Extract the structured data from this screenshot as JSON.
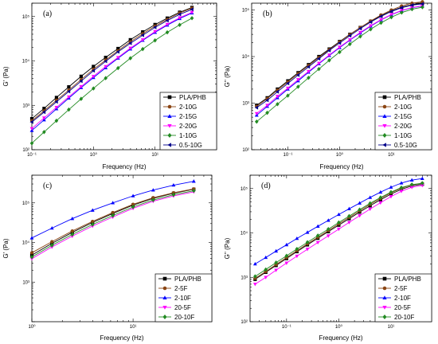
{
  "chart_data": [
    {
      "type": "line",
      "panel": "(a)",
      "xlabel": "Frequency (Hz)",
      "ylabel": "G' (Pa)",
      "xscale": "log",
      "yscale": "log",
      "xlim": [
        0.1,
        100
      ],
      "ylim": [
        100,
        200000
      ],
      "xticks": [
        "10⁻¹",
        "10⁰",
        "10¹"
      ],
      "yticks": [
        "10²",
        "10³",
        "10⁴",
        "10⁵"
      ],
      "legend": "bottom-right",
      "x": [
        0.1,
        0.158,
        0.251,
        0.398,
        0.631,
        1,
        1.58,
        2.51,
        3.98,
        6.31,
        10,
        15.8,
        25.1,
        39.8
      ],
      "series": [
        {
          "name": "PLA/PHB",
          "color": "#000000",
          "marker": "square",
          "values": [
            500,
            850,
            1500,
            2600,
            4500,
            7500,
            12000,
            19000,
            30000,
            45000,
            66000,
            92000,
            125000,
            160000
          ]
        },
        {
          "name": "2-10G",
          "color": "#8B4513",
          "marker": "circle",
          "values": [
            450,
            750,
            1300,
            2200,
            3800,
            6500,
            10500,
            17000,
            27000,
            41000,
            61000,
            86000,
            120000,
            155000
          ]
        },
        {
          "name": "2-15G",
          "color": "#0000FF",
          "marker": "triangle-up",
          "values": [
            270,
            470,
            830,
            1450,
            2500,
            4200,
            7000,
            11500,
            18500,
            29000,
            44000,
            64000,
            90000,
            120000
          ]
        },
        {
          "name": "2-20G",
          "color": "#FF00FF",
          "marker": "triangle-down",
          "values": [
            300,
            520,
            900,
            1550,
            2650,
            4500,
            7500,
            12000,
            19500,
            30000,
            46000,
            67000,
            94000,
            125000
          ]
        },
        {
          "name": "1-10G",
          "color": "#228B22",
          "marker": "diamond",
          "values": [
            140,
            250,
            450,
            800,
            1400,
            2400,
            4100,
            6900,
            11500,
            18500,
            29000,
            44000,
            65000,
            92000
          ]
        },
        {
          "name": "0.5-10G",
          "color": "#00008B",
          "marker": "triangle-left",
          "values": [
            420,
            700,
            1200,
            2050,
            3500,
            6000,
            9800,
            16000,
            25000,
            38000,
            57000,
            81000,
            112000,
            145000
          ]
        }
      ]
    },
    {
      "type": "line",
      "panel": "(b)",
      "xlabel": "Frequency (Hz)",
      "ylabel": "G'' (Pa)",
      "xscale": "log",
      "yscale": "log",
      "xlim": [
        0.02,
        60
      ],
      "ylim": [
        100,
        140000
      ],
      "xticks": [
        "10⁻¹",
        "10⁰",
        "10¹"
      ],
      "yticks": [
        "10²",
        "10³",
        "10⁴",
        "10⁵"
      ],
      "legend": "bottom-right",
      "x": [
        0.025,
        0.04,
        0.063,
        0.1,
        0.158,
        0.251,
        0.398,
        0.631,
        1,
        1.58,
        2.51,
        3.98,
        6.31,
        10,
        15.8,
        25.1,
        39.8
      ],
      "series": [
        {
          "name": "PLA/PHB",
          "color": "#000000",
          "marker": "square",
          "values": [
            900,
            1300,
            2000,
            3000,
            4500,
            6700,
            10000,
            14500,
            21000,
            30000,
            42000,
            57000,
            75000,
            95000,
            115000,
            130000,
            140000
          ]
        },
        {
          "name": "2-10G",
          "color": "#8B4513",
          "marker": "circle",
          "values": [
            850,
            1250,
            1900,
            2850,
            4300,
            6400,
            9500,
            14000,
            20500,
            29500,
            42000,
            58000,
            78000,
            100000,
            122000,
            140000,
            150000
          ]
        },
        {
          "name": "2-15G",
          "color": "#0000FF",
          "marker": "triangle-up",
          "values": [
            550,
            850,
            1300,
            2000,
            3000,
            4600,
            7000,
            10500,
            15500,
            22500,
            32000,
            45000,
            61000,
            79000,
            97000,
            112000,
            122000
          ]
        },
        {
          "name": "2-20G",
          "color": "#FF00FF",
          "marker": "triangle-down",
          "values": [
            600,
            900,
            1400,
            2100,
            3200,
            4800,
            7200,
            10800,
            16000,
            23000,
            33000,
            46000,
            62000,
            80000,
            98000,
            113000,
            123000
          ]
        },
        {
          "name": "1-10G",
          "color": "#228B22",
          "marker": "diamond",
          "values": [
            400,
            620,
            950,
            1450,
            2250,
            3500,
            5400,
            8300,
            12500,
            18500,
            27000,
            38500,
            53000,
            70000,
            88000,
            104000,
            115000
          ]
        },
        {
          "name": "0.5-10G",
          "color": "#00008B",
          "marker": "triangle-left",
          "values": [
            800,
            1150,
            1750,
            2650,
            4000,
            6000,
            9000,
            13500,
            19500,
            28000,
            40000,
            55000,
            73000,
            93000,
            112000,
            127000,
            135000
          ]
        }
      ]
    },
    {
      "type": "line",
      "panel": "(c)",
      "xlabel": "Frequency (Hz)",
      "ylabel": "G' (Pa)",
      "xscale": "log",
      "yscale": "log",
      "xlim": [
        1,
        60
      ],
      "ylim": [
        100,
        500000
      ],
      "xticks": [
        "10⁰",
        "10¹"
      ],
      "yticks": [
        "10³",
        "10⁴",
        "10⁵"
      ],
      "legend": "bottom-right",
      "x": [
        1,
        1.58,
        2.51,
        3.98,
        6.31,
        10,
        15.8,
        25.1,
        39.8
      ],
      "series": [
        {
          "name": "PLA/PHB",
          "color": "#000000",
          "marker": "square",
          "values": [
            4800,
            9500,
            18000,
            32000,
            54000,
            88000,
            130000,
            175000,
            220000
          ]
        },
        {
          "name": "2-5F",
          "color": "#8B4513",
          "marker": "circle",
          "values": [
            5500,
            10500,
            19500,
            34000,
            57000,
            92000,
            135000,
            180000,
            225000
          ]
        },
        {
          "name": "2-10F",
          "color": "#0000FF",
          "marker": "triangle-up",
          "values": [
            13000,
            23000,
            40000,
            65000,
            100000,
            150000,
            210000,
            280000,
            350000
          ]
        },
        {
          "name": "20-5F",
          "color": "#FF00FF",
          "marker": "triangle-down",
          "values": [
            3900,
            7700,
            14500,
            26000,
            44000,
            73000,
            110000,
            150000,
            190000
          ]
        },
        {
          "name": "20-10F",
          "color": "#228B22",
          "marker": "diamond",
          "values": [
            4300,
            8500,
            16000,
            28500,
            48000,
            79000,
            118000,
            160000,
            202000
          ]
        }
      ]
    },
    {
      "type": "line",
      "panel": "(d)",
      "xlabel": "Frequency (Hz)",
      "ylabel": "G'' (Pa)",
      "xscale": "log",
      "yscale": "log",
      "xlim": [
        0.02,
        60
      ],
      "ylim": [
        100,
        200000
      ],
      "xticks": [
        "10⁻¹",
        "10⁰",
        "10¹"
      ],
      "yticks": [
        "10²",
        "10³",
        "10⁴",
        "10⁵"
      ],
      "legend": "bottom-right",
      "x": [
        0.025,
        0.04,
        0.063,
        0.1,
        0.158,
        0.251,
        0.398,
        0.631,
        1,
        1.58,
        2.51,
        3.98,
        6.31,
        10,
        15.8,
        25.1,
        39.8
      ],
      "series": [
        {
          "name": "PLA/PHB",
          "color": "#000000",
          "marker": "square",
          "values": [
            900,
            1300,
            1850,
            2650,
            3800,
            5400,
            7600,
            10700,
            15000,
            21000,
            29500,
            41000,
            56000,
            75000,
            96000,
            115000,
            125000
          ]
        },
        {
          "name": "2-5F",
          "color": "#8B4513",
          "marker": "circle",
          "values": [
            950,
            1350,
            1950,
            2800,
            4000,
            5700,
            8000,
            11300,
            16000,
            22500,
            31500,
            44000,
            60000,
            80000,
            102000,
            121000,
            131000
          ]
        },
        {
          "name": "2-10F",
          "color": "#0000FF",
          "marker": "triangle-up",
          "values": [
            2000,
            2800,
            3900,
            5400,
            7500,
            10300,
            14100,
            19200,
            26000,
            35000,
            47000,
            63000,
            83000,
            107000,
            133000,
            155000,
            168000
          ]
        },
        {
          "name": "20-5F",
          "color": "#FF00FF",
          "marker": "triangle-down",
          "values": [
            700,
            1000,
            1450,
            2100,
            3000,
            4300,
            6100,
            8600,
            12200,
            17300,
            24500,
            34500,
            48000,
            66000,
            87000,
            107000,
            118000
          ]
        },
        {
          "name": "20-10F",
          "color": "#228B22",
          "marker": "diamond",
          "values": [
            1050,
            1500,
            2150,
            3050,
            4350,
            6150,
            8700,
            12200,
            17200,
            24000,
            33500,
            46500,
            63000,
            83000,
            105000,
            123000,
            132000
          ]
        }
      ]
    }
  ]
}
